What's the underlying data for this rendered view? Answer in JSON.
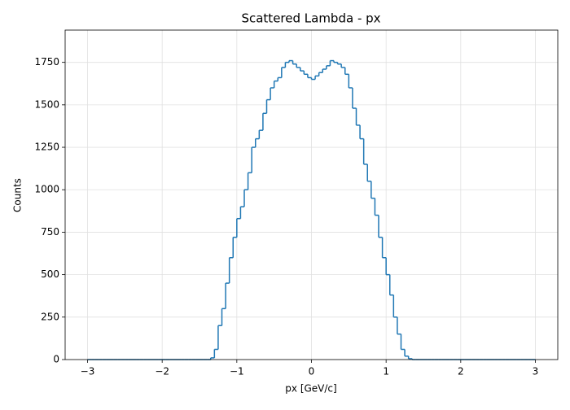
{
  "chart_data": {
    "type": "histogram",
    "title": "Scattered Lambda - px",
    "xlabel": "px [GeV/c]",
    "ylabel": "Counts",
    "color": "#1f77b4",
    "grid": true,
    "xlim": [
      -3.3,
      3.3
    ],
    "ylim": [
      0,
      1940
    ],
    "xticks": [
      {
        "value": -3,
        "label": "−3"
      },
      {
        "value": -2,
        "label": "−2"
      },
      {
        "value": -1,
        "label": "−1"
      },
      0,
      1,
      2,
      3
    ],
    "yticks": [
      0,
      250,
      500,
      750,
      1000,
      1250,
      1500,
      1750
    ],
    "bins": [
      -3,
      -2.95,
      -2.9,
      -2.85,
      -2.8,
      -2.75,
      -2.7,
      -2.65,
      -2.6,
      -2.55,
      -2.5,
      -2.45,
      -2.4,
      -2.35,
      -2.3,
      -2.25,
      -2.2,
      -2.15,
      -2.1,
      -2.05,
      -2,
      -1.95,
      -1.9,
      -1.85,
      -1.8,
      -1.75,
      -1.7,
      -1.65,
      -1.6,
      -1.55,
      -1.5,
      -1.45,
      -1.4,
      -1.35,
      -1.3,
      -1.25,
      -1.2,
      -1.15,
      -1.1,
      -1.05,
      -1,
      -0.95,
      -0.9,
      -0.85,
      -0.8,
      -0.75,
      -0.7,
      -0.65,
      -0.6,
      -0.55,
      -0.5,
      -0.45,
      -0.4,
      -0.35,
      -0.3,
      -0.25,
      -0.2,
      -0.15,
      -0.1,
      -0.05,
      0,
      0.05,
      0.1,
      0.15,
      0.2,
      0.25,
      0.3,
      0.35,
      0.4,
      0.45,
      0.5,
      0.55,
      0.6,
      0.65,
      0.7,
      0.75,
      0.8,
      0.85,
      0.9,
      0.95,
      1,
      1.05,
      1.1,
      1.15,
      1.2,
      1.25,
      1.3,
      1.35,
      1.4,
      1.45,
      1.5,
      1.55,
      1.6,
      1.65,
      1.7,
      1.75,
      1.8,
      1.85,
      1.9,
      1.95,
      2,
      2.05,
      2.1,
      2.15,
      2.2,
      2.25,
      2.3,
      2.35,
      2.4,
      2.45,
      2.5,
      2.55,
      2.6,
      2.65,
      2.7,
      2.75,
      2.8,
      2.85,
      2.9,
      2.95,
      3
    ],
    "counts": [
      0,
      0,
      0,
      0,
      0,
      0,
      0,
      0,
      0,
      0,
      0,
      0,
      0,
      0,
      0,
      0,
      0,
      0,
      0,
      0,
      0,
      0,
      0,
      0,
      0,
      0,
      0,
      0,
      0,
      0,
      0,
      0,
      0,
      10,
      60,
      200,
      300,
      450,
      600,
      720,
      830,
      900,
      1000,
      1100,
      1250,
      1300,
      1350,
      1450,
      1530,
      1600,
      1640,
      1660,
      1720,
      1750,
      1760,
      1740,
      1720,
      1700,
      1680,
      1660,
      1650,
      1670,
      1690,
      1710,
      1730,
      1760,
      1750,
      1740,
      1720,
      1680,
      1600,
      1480,
      1380,
      1300,
      1150,
      1050,
      950,
      850,
      720,
      600,
      500,
      380,
      250,
      150,
      60,
      20,
      5,
      0,
      0,
      0,
      0,
      0,
      0,
      0,
      0,
      0,
      0,
      0,
      0,
      0,
      0,
      0,
      0,
      0,
      0,
      0,
      0,
      0,
      0,
      0,
      0,
      0,
      0,
      0,
      0,
      0,
      0,
      0,
      0,
      0
    ]
  }
}
